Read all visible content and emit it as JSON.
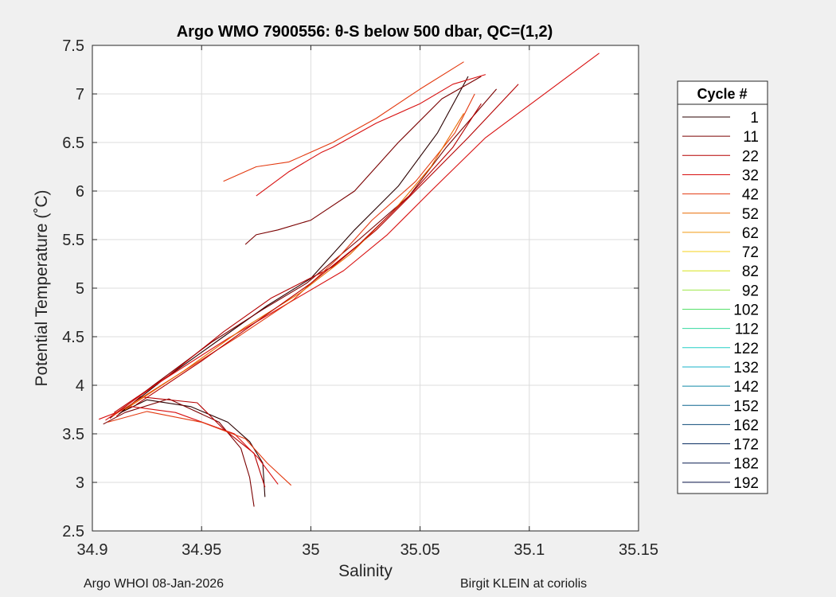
{
  "footer": {
    "left": "Argo WHOI 08-Jan-2026",
    "right": "Birgit KLEIN at coriolis"
  },
  "chart_data": {
    "type": "line",
    "title": "Argo WMO 7900556: θ-S below 500 dbar,  QC=(1,2)",
    "xlabel": "Salinity",
    "ylabel": "Potential Temperature (˚C)",
    "xlim": [
      34.9,
      35.15
    ],
    "ylim": [
      2.5,
      7.5
    ],
    "xticks": [
      "34.9",
      "34.95",
      "35",
      "35.05",
      "35.1",
      "35.15"
    ],
    "yticks": [
      "2.5",
      "3",
      "3.5",
      "4",
      "4.5",
      "5",
      "5.5",
      "6",
      "6.5",
      "7",
      "7.5"
    ],
    "grid": true,
    "legend": {
      "title": "Cycle #",
      "placement": "right-outside",
      "entries": [
        {
          "label": "1",
          "color": "#2a0000"
        },
        {
          "label": "11",
          "color": "#7a0000"
        },
        {
          "label": "22",
          "color": "#b50000"
        },
        {
          "label": "32",
          "color": "#d81010"
        },
        {
          "label": "42",
          "color": "#e33a10"
        },
        {
          "label": "52",
          "color": "#e86a00"
        },
        {
          "label": "62",
          "color": "#f09a10"
        },
        {
          "label": "72",
          "color": "#f5d01a"
        },
        {
          "label": "82",
          "color": "#d7e41a"
        },
        {
          "label": "92",
          "color": "#9ee84a"
        },
        {
          "label": "102",
          "color": "#55e06a"
        },
        {
          "label": "112",
          "color": "#35d8a0"
        },
        {
          "label": "122",
          "color": "#22cfc6"
        },
        {
          "label": "132",
          "color": "#19b3c8"
        },
        {
          "label": "142",
          "color": "#128aa8"
        },
        {
          "label": "152",
          "color": "#0f6690"
        },
        {
          "label": "162",
          "color": "#0c4a78"
        },
        {
          "label": "172",
          "color": "#0a2f62"
        },
        {
          "label": "182",
          "color": "#081c50"
        },
        {
          "label": "192",
          "color": "#050f45"
        }
      ]
    },
    "series": [
      {
        "color": "#2a0000",
        "x": [
          34.913,
          34.925,
          34.945,
          34.962,
          34.972,
          34.978,
          34.979
        ],
        "y": [
          3.72,
          3.85,
          3.78,
          3.62,
          3.42,
          3.2,
          2.85
        ]
      },
      {
        "color": "#7a0000",
        "x": [
          34.905,
          34.915,
          34.935,
          34.958,
          34.968,
          34.972,
          34.974
        ],
        "y": [
          3.6,
          3.72,
          3.86,
          3.62,
          3.35,
          3.05,
          2.75
        ]
      },
      {
        "color": "#b50000",
        "x": [
          34.911,
          34.922,
          34.948,
          34.96,
          34.974,
          34.979
        ],
        "y": [
          3.68,
          3.88,
          3.82,
          3.55,
          3.3,
          2.95
        ]
      },
      {
        "color": "#d81010",
        "x": [
          34.903,
          34.918,
          34.938,
          34.965,
          34.976,
          34.985
        ],
        "y": [
          3.65,
          3.78,
          3.72,
          3.5,
          3.25,
          2.98
        ]
      },
      {
        "color": "#e33a10",
        "x": [
          34.907,
          34.925,
          34.95,
          34.97,
          34.98,
          34.991
        ],
        "y": [
          3.62,
          3.73,
          3.62,
          3.45,
          3.2,
          2.97
        ]
      },
      {
        "color": "#2a0000",
        "x": [
          34.912,
          34.932,
          34.96,
          34.98,
          35.0,
          35.02,
          35.04,
          35.058,
          35.072
        ],
        "y": [
          3.7,
          4.05,
          4.5,
          4.82,
          5.1,
          5.6,
          6.05,
          6.6,
          7.18
        ]
      },
      {
        "color": "#7a0000",
        "x": [
          34.908,
          34.928,
          34.955,
          34.978,
          34.998,
          35.022,
          35.045,
          35.062,
          35.085
        ],
        "y": [
          3.66,
          4.0,
          4.45,
          4.78,
          5.05,
          5.5,
          5.95,
          6.45,
          7.05
        ]
      },
      {
        "color": "#b50000",
        "x": [
          34.91,
          34.935,
          34.96,
          34.982,
          35.01,
          35.03,
          35.05,
          35.072,
          35.095
        ],
        "y": [
          3.72,
          4.1,
          4.55,
          4.9,
          5.22,
          5.6,
          6.05,
          6.55,
          7.1
        ]
      },
      {
        "color": "#d81010",
        "x": [
          34.906,
          34.93,
          34.962,
          34.99,
          35.015,
          35.035,
          35.055,
          35.08,
          35.132
        ],
        "y": [
          3.64,
          4.02,
          4.48,
          4.85,
          5.18,
          5.55,
          6.0,
          6.55,
          7.42
        ]
      },
      {
        "color": "#e33a10",
        "x": [
          34.909,
          34.94,
          34.968,
          34.992,
          35.012,
          35.028,
          35.048,
          35.066,
          35.075
        ],
        "y": [
          3.68,
          4.12,
          4.52,
          4.88,
          5.3,
          5.7,
          6.1,
          6.6,
          7.0
        ]
      },
      {
        "color": "#e86a00",
        "x": [
          34.915,
          34.942,
          34.97,
          34.995,
          35.018,
          35.038,
          35.055,
          35.07
        ],
        "y": [
          3.75,
          4.15,
          4.6,
          4.95,
          5.35,
          5.8,
          6.25,
          6.8
        ]
      },
      {
        "color": "#b50000",
        "x": [
          34.92,
          34.95,
          34.978,
          35.0,
          35.022,
          35.045,
          35.065,
          35.078
        ],
        "y": [
          3.8,
          4.25,
          4.7,
          5.05,
          5.45,
          5.95,
          6.45,
          6.9
        ]
      },
      {
        "color": "#7a0000",
        "x": [
          34.97,
          34.975,
          34.985,
          35.0,
          35.02,
          35.04,
          35.06,
          35.078
        ],
        "y": [
          5.45,
          5.55,
          5.6,
          5.7,
          6.0,
          6.5,
          6.95,
          7.18
        ]
      },
      {
        "color": "#d81010",
        "x": [
          34.975,
          34.99,
          35.005,
          35.01,
          35.03,
          35.05,
          35.065,
          35.08
        ],
        "y": [
          5.95,
          6.2,
          6.4,
          6.45,
          6.7,
          6.9,
          7.1,
          7.2
        ]
      },
      {
        "color": "#e33a10",
        "x": [
          34.96,
          34.975,
          34.99,
          35.01,
          35.03,
          35.05,
          35.07
        ],
        "y": [
          6.1,
          6.25,
          6.3,
          6.5,
          6.75,
          7.05,
          7.33
        ]
      }
    ]
  }
}
